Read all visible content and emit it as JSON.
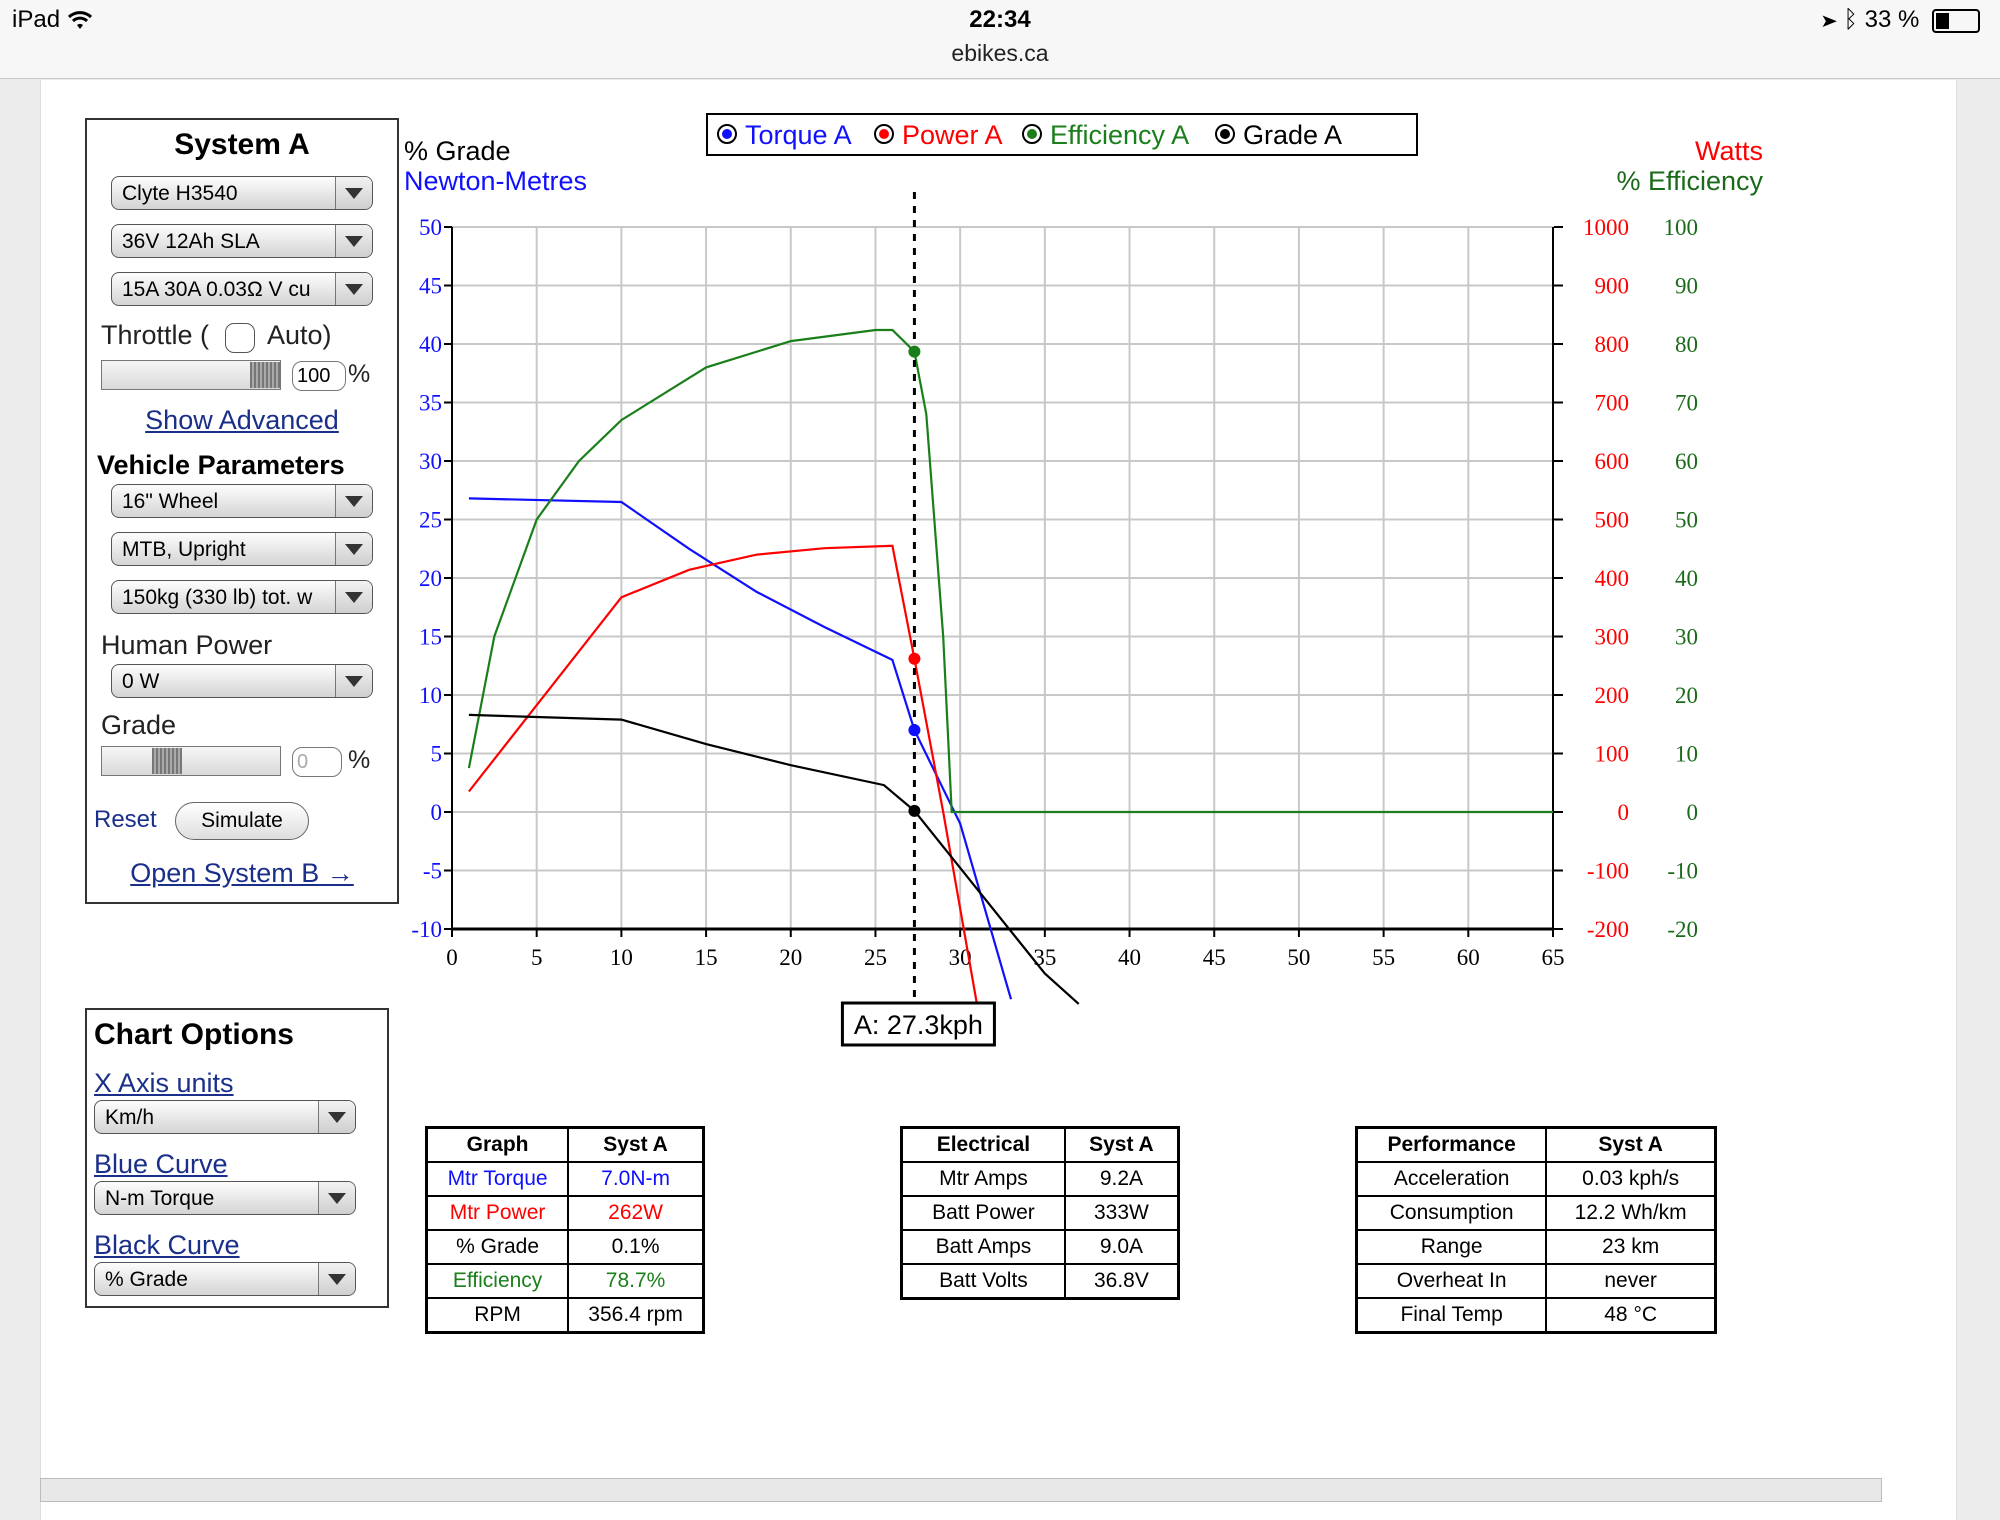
{
  "statusbar": {
    "device": "iPad",
    "time": "22:34",
    "url": "ebikes.ca",
    "battery": "33 %",
    "battery_level": 0.33
  },
  "system_a": {
    "title": "System A",
    "motor": "Clyte H3540",
    "battery": "36V 12Ah SLA",
    "controller": "15A 30A 0.03Ω V cu",
    "throttle_label": "Throttle (",
    "auto_label": "Auto)",
    "throttle_value": "100",
    "percent": "%",
    "show_advanced": "Show Advanced",
    "vehicle_title": "Vehicle Parameters",
    "wheel": "16\"  Wheel",
    "frame": "MTB, Upright",
    "weight": "150kg (330 lb) tot. w",
    "human_power_label": "Human Power",
    "human_power": "0 W",
    "grade_label": "Grade",
    "grade_value": "0",
    "reset": "Reset",
    "simulate": "Simulate",
    "open_b": "Open System B →"
  },
  "chart_options": {
    "title": "Chart Options",
    "x_units_label": "X Axis units",
    "x_units": "Km/h",
    "blue_label": "Blue Curve",
    "blue": "N-m Torque",
    "black_label": "Black Curve",
    "black": "% Grade"
  },
  "chart_data": {
    "type": "line",
    "legend": [
      "Torque A",
      "Power A",
      "Efficiency A",
      "Grade A"
    ],
    "legend_colors": [
      "#1010ff",
      "#ff0000",
      "#1a7f1a",
      "#000000"
    ],
    "left_label_1": "% Grade",
    "left_label_2": "Newton-Metres",
    "right_label_1": "Watts",
    "right_label_2": "% Efficiency",
    "x_ticks": [
      "0",
      "5",
      "10",
      "15",
      "20",
      "25",
      "30",
      "35",
      "40",
      "45",
      "50",
      "55",
      "60",
      "65"
    ],
    "left_ticks": [
      "50",
      "45",
      "40",
      "35",
      "30",
      "25",
      "20",
      "15",
      "10",
      "5",
      "0",
      "-5",
      "-10"
    ],
    "watts_ticks": [
      "1000",
      "900",
      "800",
      "700",
      "600",
      "500",
      "400",
      "300",
      "200",
      "100",
      "0",
      "-100",
      "-200"
    ],
    "eff_ticks": [
      "100",
      "90",
      "80",
      "70",
      "60",
      "50",
      "40",
      "30",
      "20",
      "10",
      "0",
      "-10",
      "-20"
    ],
    "xlim": [
      0,
      65
    ],
    "left_ylim": [
      -10,
      50
    ],
    "watts_ylim": [
      -200,
      1000
    ],
    "eff_ylim": [
      -20,
      100
    ],
    "marker_x": 27.3,
    "marker_label": "A: 27.3kph",
    "series": [
      {
        "name": "Torque A",
        "axis": "left",
        "color": "#1010ff",
        "points": [
          [
            1,
            26.8
          ],
          [
            10,
            26.5
          ],
          [
            14,
            22.5
          ],
          [
            18,
            18.8
          ],
          [
            22,
            15.8
          ],
          [
            26,
            13.0
          ],
          [
            27.3,
            7.0
          ],
          [
            30,
            -1
          ],
          [
            33,
            -16
          ]
        ]
      },
      {
        "name": "Power A",
        "axis": "watts",
        "color": "#ff0000",
        "points": [
          [
            1,
            35
          ],
          [
            10,
            367
          ],
          [
            14,
            414
          ],
          [
            18,
            440
          ],
          [
            22,
            451
          ],
          [
            26,
            455
          ],
          [
            27.3,
            262
          ],
          [
            29,
            0
          ],
          [
            31,
            -330
          ]
        ]
      },
      {
        "name": "Efficiency A",
        "axis": "eff",
        "color": "#1a7f1a",
        "points": [
          [
            1,
            7.5
          ],
          [
            2.5,
            30
          ],
          [
            5,
            50
          ],
          [
            7.5,
            60
          ],
          [
            10,
            67
          ],
          [
            15,
            76
          ],
          [
            20,
            80.5
          ],
          [
            25,
            82.4
          ],
          [
            26,
            82.4
          ],
          [
            27.3,
            78.7
          ],
          [
            28,
            68
          ],
          [
            29,
            30
          ],
          [
            29.5,
            0
          ],
          [
            65,
            0
          ]
        ]
      },
      {
        "name": "Grade A",
        "axis": "left",
        "color": "#000000",
        "points": [
          [
            1,
            8.3
          ],
          [
            10,
            7.9
          ],
          [
            15,
            5.8
          ],
          [
            20,
            4.0
          ],
          [
            25.5,
            2.3
          ],
          [
            27.3,
            0.1
          ],
          [
            35,
            -13.8
          ],
          [
            37,
            -16.4
          ]
        ]
      }
    ]
  },
  "tables": {
    "graph": {
      "headers": [
        "Graph",
        "Syst A"
      ],
      "rows": [
        [
          "Mtr Torque",
          "7.0N-m"
        ],
        [
          "Mtr Power",
          "262W"
        ],
        [
          "% Grade",
          "0.1%"
        ],
        [
          "Efficiency",
          "78.7%"
        ],
        [
          "RPM",
          "356.4 rpm"
        ]
      ],
      "row_colors": [
        "#1010ff",
        "#ff0000",
        "#000000",
        "#1a7f1a",
        "#000000"
      ]
    },
    "electrical": {
      "headers": [
        "Electrical",
        "Syst A"
      ],
      "rows": [
        [
          "Mtr Amps",
          "9.2A"
        ],
        [
          "Batt Power",
          "333W"
        ],
        [
          "Batt Amps",
          "9.0A"
        ],
        [
          "Batt Volts",
          "36.8V"
        ]
      ]
    },
    "performance": {
      "headers": [
        "Performance",
        "Syst A"
      ],
      "rows": [
        [
          "Acceleration",
          "0.03 kph/s"
        ],
        [
          "Consumption",
          "12.2 Wh/km"
        ],
        [
          "Range",
          "23 km"
        ],
        [
          "Overheat In",
          "never"
        ],
        [
          "Final Temp",
          "48 °C"
        ]
      ]
    }
  }
}
